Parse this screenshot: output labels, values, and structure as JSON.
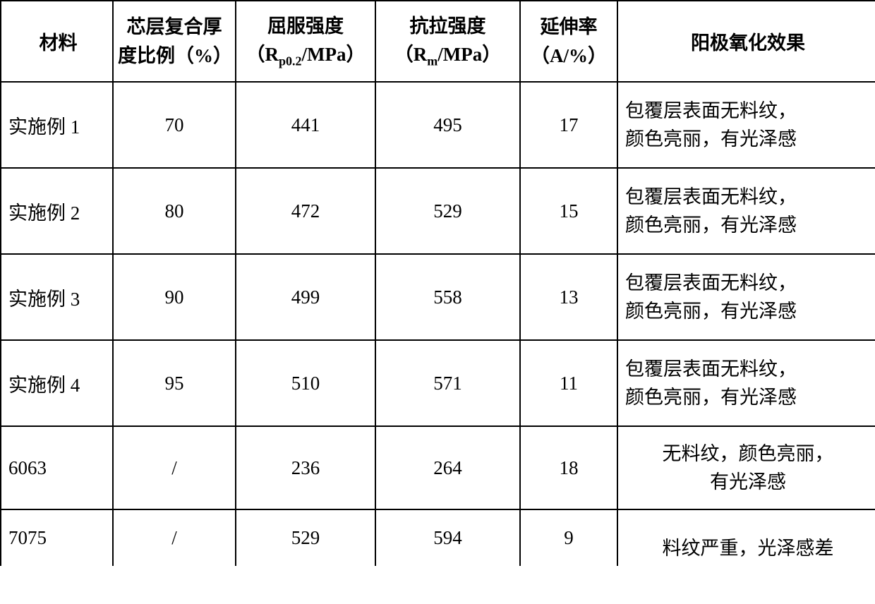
{
  "table": {
    "columns": {
      "c0": "材料",
      "c1_line1": "芯层复合厚",
      "c1_line2": "度比例（%）",
      "c2_prefix": "屈服强度",
      "c2_line2_open": "（R",
      "c2_sub": "p0.2",
      "c2_line2_close": "/MPa）",
      "c3_prefix": "抗拉强度",
      "c3_line2_open": "（R",
      "c3_sub": "m",
      "c3_line2_close": "/MPa）",
      "c4_line1": "延伸率",
      "c4_line2": "（A/%）",
      "c5": "阳极氧化效果"
    },
    "rows": [
      {
        "c0": "实施例 1",
        "c1": "70",
        "c2": "441",
        "c3": "495",
        "c4": "17",
        "c5a": "包覆层表面无料纹，",
        "c5b": "颜色亮丽，有光泽感"
      },
      {
        "c0": "实施例 2",
        "c1": "80",
        "c2": "472",
        "c3": "529",
        "c4": "15",
        "c5a": "包覆层表面无料纹，",
        "c5b": "颜色亮丽，有光泽感"
      },
      {
        "c0": "实施例 3",
        "c1": "90",
        "c2": "499",
        "c3": "558",
        "c4": "13",
        "c5a": "包覆层表面无料纹，",
        "c5b": "颜色亮丽，有光泽感"
      },
      {
        "c0": "实施例 4",
        "c1": "95",
        "c2": "510",
        "c3": "571",
        "c4": "11",
        "c5a": "包覆层表面无料纹，",
        "c5b": "颜色亮丽，有光泽感"
      },
      {
        "c0": "6063",
        "c1": "/",
        "c2": "236",
        "c3": "264",
        "c4": "18",
        "c5a": "无料纹，颜色亮丽，",
        "c5b": "有光泽感"
      },
      {
        "c0": "7075",
        "c1": "/",
        "c2": "529",
        "c3": "594",
        "c4": "9",
        "c5a": "料纹严重，光泽感差",
        "c5b": ""
      }
    ]
  },
  "style": {
    "border_color": "#000000",
    "text_color": "#000000",
    "background": "#ffffff",
    "font_size_pt": 20,
    "sub_font_size_pt": 13
  }
}
